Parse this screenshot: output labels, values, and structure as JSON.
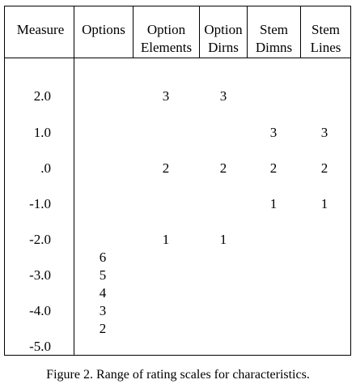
{
  "headers": [
    {
      "line1": "Measure",
      "line2": ""
    },
    {
      "line1": "Options",
      "line2": ""
    },
    {
      "line1": "Option",
      "line2": "Elements"
    },
    {
      "line1": "Option",
      "line2": "Dirns"
    },
    {
      "line1": "Stem",
      "line2": "Dimns"
    },
    {
      "line1": "Stem",
      "line2": "Lines"
    }
  ],
  "measures": [
    "2.0",
    "1.0",
    ".0",
    "-1.0",
    "-2.0",
    "-3.0",
    "-4.0",
    "-5.0"
  ],
  "cells": {
    "options": [
      "6",
      "5",
      "4",
      "3",
      "2"
    ],
    "option_elements": [
      "3",
      "2",
      "1"
    ],
    "option_dirns": [
      "3",
      "2",
      "1"
    ],
    "stem_dimns": [
      "3",
      "2",
      "1"
    ],
    "stem_lines": [
      "3",
      "2",
      "1"
    ]
  },
  "caption": "Figure 2.  Range of rating scales for characteristics."
}
